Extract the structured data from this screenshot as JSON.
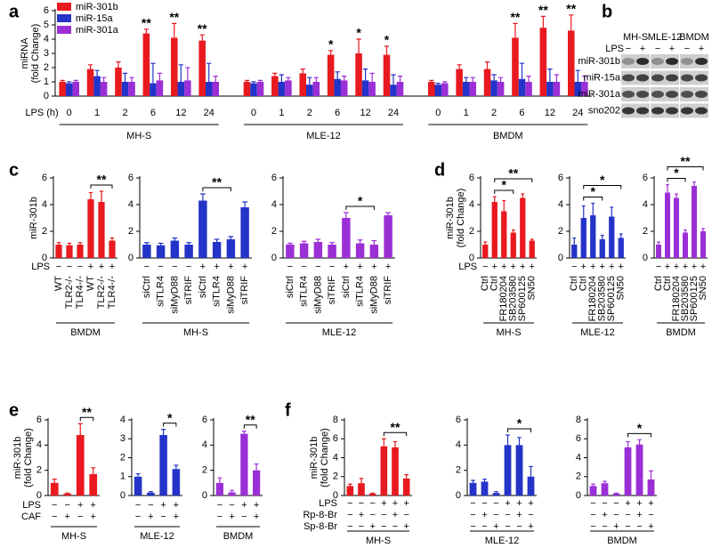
{
  "chart_data": [
    {
      "type": "grouped_bar",
      "panel_letter": "a",
      "ylabel": [
        "miRNA",
        "(fold Change)"
      ],
      "ylim": [
        0,
        6
      ],
      "yticks": [
        0,
        1,
        2,
        3,
        4,
        5,
        6
      ],
      "xlabel": "LPS (h)",
      "groups": [
        {
          "name": "MH-S",
          "categories": [
            "0",
            "1",
            "2",
            "6",
            "12",
            "24"
          ]
        },
        {
          "name": "MLE-12",
          "categories": [
            "0",
            "1",
            "2",
            "6",
            "12",
            "24"
          ]
        },
        {
          "name": "BMDM",
          "categories": [
            "0",
            "1",
            "2",
            "6",
            "12",
            "24"
          ]
        }
      ],
      "series": [
        {
          "name": "miR-301b",
          "color": "#e8191f",
          "values": [
            1.0,
            1.9,
            2.0,
            4.4,
            4.1,
            3.9,
            1.0,
            1.4,
            1.6,
            2.9,
            3.0,
            2.9,
            1.0,
            1.9,
            1.9,
            4.1,
            4.8,
            4.6
          ],
          "errors": [
            0.1,
            0.3,
            0.4,
            0.3,
            1.0,
            0.4,
            0.1,
            0.2,
            0.3,
            0.3,
            1.0,
            0.6,
            0.1,
            0.3,
            0.5,
            1.0,
            0.8,
            1.1
          ]
        },
        {
          "name": "miR-15a",
          "color": "#2433c8",
          "values": [
            0.9,
            1.4,
            1.0,
            0.9,
            1.0,
            1.0,
            0.9,
            1.0,
            0.8,
            1.2,
            1.1,
            0.8,
            0.8,
            1.0,
            1.1,
            1.2,
            1.0,
            1.0
          ],
          "errors": [
            0.1,
            0.4,
            0.6,
            1.4,
            1.2,
            1.3,
            0.1,
            0.5,
            0.5,
            0.5,
            0.8,
            0.7,
            0.1,
            0.3,
            0.4,
            1.1,
            0.9,
            0.8
          ]
        },
        {
          "name": "miR-301a",
          "color": "#9b2fd6",
          "values": [
            1.0,
            1.0,
            1.0,
            1.1,
            1.1,
            1.0,
            1.0,
            1.1,
            1.0,
            1.1,
            1.0,
            1.0,
            0.9,
            1.0,
            1.0,
            1.0,
            1.0,
            1.0
          ],
          "errors": [
            0.1,
            0.3,
            0.3,
            0.5,
            0.9,
            0.4,
            0.1,
            0.2,
            0.3,
            0.3,
            0.6,
            0.4,
            0.1,
            0.3,
            0.3,
            0.4,
            0.5,
            0.4
          ]
        }
      ],
      "annotations": [
        {
          "text": "**",
          "series": 0,
          "index": 3
        },
        {
          "text": "**",
          "series": 0,
          "index": 4
        },
        {
          "text": "**",
          "series": 0,
          "index": 5
        },
        {
          "text": "*",
          "series": 0,
          "index": 9
        },
        {
          "text": "*",
          "series": 0,
          "index": 10
        },
        {
          "text": "*",
          "series": 0,
          "index": 11
        },
        {
          "text": "**",
          "series": 0,
          "index": 15
        },
        {
          "text": "**",
          "series": 0,
          "index": 16
        },
        {
          "text": "**",
          "series": 0,
          "index": 17
        }
      ]
    },
    {
      "type": "bar",
      "panel_letter": "c",
      "ylabel": [
        "miR-301b"
      ],
      "ylim": [
        0,
        6
      ],
      "yticks": [
        0,
        2,
        4,
        6
      ],
      "xlabel": "BMDM",
      "color": "#e8191f",
      "categories": [
        "WT",
        "TLR2-/-",
        "TLR4-/-",
        "WT",
        "TLR2-/-",
        "TLR4-/-"
      ],
      "rows": [
        {
          "name": "LPS",
          "values": [
            "−",
            "−",
            "−",
            "+",
            "+",
            "+"
          ]
        }
      ],
      "values": [
        1.0,
        0.95,
        1.0,
        4.4,
        4.2,
        1.3
      ],
      "errors": [
        0.15,
        0.15,
        0.15,
        0.5,
        0.8,
        0.2
      ],
      "annotations": [
        {
          "text": "**",
          "bracket": [
            3,
            5
          ]
        }
      ]
    },
    {
      "type": "bar",
      "ylim": [
        0,
        6
      ],
      "yticks": [
        0,
        2,
        4,
        6
      ],
      "xlabel": "MH-S",
      "color": "#2433c8",
      "categories": [
        "siCtrl",
        "siTLR4",
        "siMyD88",
        "siTRIF",
        "siCtrl",
        "siTLR4",
        "siMyD88",
        "siTRIF"
      ],
      "rows": [
        {
          "values": [
            "−",
            "−",
            "−",
            "−",
            "+",
            "+",
            "+",
            "+"
          ]
        }
      ],
      "values": [
        1.0,
        0.95,
        1.3,
        1.0,
        4.3,
        1.2,
        1.4,
        3.8
      ],
      "errors": [
        0.15,
        0.15,
        0.2,
        0.15,
        0.5,
        0.2,
        0.2,
        0.4
      ],
      "annotations": [
        {
          "text": "**",
          "bracket": [
            4,
            6
          ]
        }
      ]
    },
    {
      "type": "bar",
      "ylim": [
        0,
        6
      ],
      "yticks": [
        0,
        2,
        4,
        6
      ],
      "xlabel": "MLE-12",
      "color": "#9b2fd6",
      "categories": [
        "siCtrl",
        "siTLR4",
        "siMyD88",
        "siTRIF",
        "siCtrl",
        "siTLR4",
        "siMyD88",
        "siTRIF"
      ],
      "rows": [
        {
          "values": [
            "−",
            "−",
            "−",
            "−",
            "+",
            "+",
            "+",
            "+"
          ]
        }
      ],
      "values": [
        1.0,
        1.1,
        1.2,
        1.0,
        3.0,
        1.1,
        1.0,
        3.2
      ],
      "errors": [
        0.1,
        0.15,
        0.2,
        0.15,
        0.4,
        0.25,
        0.3,
        0.2
      ],
      "annotations": [
        {
          "text": "*",
          "bracket": [
            4,
            6
          ]
        }
      ]
    },
    {
      "type": "bar",
      "panel_letter": "d",
      "ylabel": [
        "miR-301b",
        "(fold Change)"
      ],
      "ylim": [
        0,
        6
      ],
      "yticks": [
        0,
        2,
        4,
        6
      ],
      "xlabel": "MH-S",
      "color": "#e8191f",
      "categories": [
        "Ctrl",
        "Ctrl",
        "FR180204",
        "SB203580",
        "SP600125",
        "SN50"
      ],
      "rows": [
        {
          "name": "LPS",
          "values": [
            "−",
            "+",
            "+",
            "+",
            "+",
            "+"
          ]
        }
      ],
      "values": [
        1.0,
        4.2,
        3.5,
        1.9,
        4.5,
        1.3
      ],
      "errors": [
        0.2,
        0.4,
        0.8,
        0.2,
        0.3,
        0.1
      ],
      "annotations": [
        {
          "text": "*",
          "bracket": [
            1,
            3
          ]
        },
        {
          "text": "**",
          "bracket": [
            1,
            5
          ]
        }
      ]
    },
    {
      "type": "bar",
      "ylim": [
        0,
        6
      ],
      "yticks": [
        0,
        2,
        4,
        6
      ],
      "xlabel": "MLE-12",
      "color": "#2433c8",
      "categories": [
        "Ctrl",
        "Ctrl",
        "FR180204",
        "SB203580",
        "SP600125",
        "SN50"
      ],
      "rows": [
        {
          "values": [
            "−",
            "+",
            "+",
            "+",
            "+",
            "+"
          ]
        }
      ],
      "values": [
        1.0,
        3.0,
        3.2,
        1.4,
        3.1,
        1.5
      ],
      "errors": [
        0.5,
        0.9,
        0.9,
        0.3,
        0.7,
        0.3
      ],
      "annotations": [
        {
          "text": "*",
          "bracket": [
            1,
            3
          ]
        },
        {
          "text": "*",
          "bracket": [
            1,
            5
          ]
        }
      ]
    },
    {
      "type": "bar",
      "ylim": [
        0,
        6
      ],
      "yticks": [
        0,
        2,
        4,
        6
      ],
      "xlabel": "BMDM",
      "color": "#9b2fd6",
      "categories": [
        "Ctrl",
        "Ctrl",
        "FR180204",
        "SB203580",
        "SP600125",
        "SN50"
      ],
      "rows": [
        {
          "values": [
            "−",
            "+",
            "+",
            "+",
            "+",
            "+"
          ]
        }
      ],
      "values": [
        1.0,
        4.9,
        4.5,
        1.9,
        5.4,
        2.0
      ],
      "errors": [
        0.2,
        0.6,
        0.3,
        0.2,
        0.3,
        0.2
      ],
      "annotations": [
        {
          "text": "*",
          "bracket": [
            1,
            3
          ]
        },
        {
          "text": "**",
          "bracket": [
            1,
            5
          ]
        }
      ]
    },
    {
      "type": "bar",
      "panel_letter": "e",
      "ylabel": [
        "miR-301b",
        "(fold Change)"
      ],
      "ylim": [
        0,
        6
      ],
      "yticks": [
        0,
        2,
        4,
        6
      ],
      "xlabel": "MH-S",
      "color": "#e8191f",
      "rows": [
        {
          "name": "LPS",
          "values": [
            "−",
            "−",
            "+",
            "+"
          ]
        },
        {
          "name": "CAF",
          "values": [
            "−",
            "+",
            "−",
            "+"
          ]
        }
      ],
      "values": [
        1.0,
        0.15,
        4.8,
        1.7
      ],
      "errors": [
        0.3,
        0.05,
        0.9,
        0.5
      ],
      "annotations": [
        {
          "text": "**",
          "bracket": [
            2,
            3
          ]
        }
      ]
    },
    {
      "type": "bar",
      "ylim": [
        0,
        4
      ],
      "yticks": [
        0,
        1,
        2,
        3,
        4
      ],
      "xlabel": "MLE-12",
      "color": "#2433c8",
      "rows": [
        {
          "values": [
            "−",
            "−",
            "+",
            "+"
          ]
        },
        {
          "values": [
            "−",
            "+",
            "−",
            "+"
          ]
        }
      ],
      "values": [
        1.0,
        0.15,
        3.2,
        1.4
      ],
      "errors": [
        0.15,
        0.05,
        0.3,
        0.2
      ],
      "annotations": [
        {
          "text": "*",
          "bracket": [
            2,
            3
          ]
        }
      ]
    },
    {
      "type": "bar",
      "ylim": [
        0,
        6
      ],
      "yticks": [
        0,
        2,
        4,
        6
      ],
      "xlabel": "BMDM",
      "color": "#9b2fd6",
      "rows": [
        {
          "values": [
            "−",
            "−",
            "+",
            "+"
          ]
        },
        {
          "values": [
            "−",
            "+",
            "−",
            "+"
          ]
        }
      ],
      "values": [
        1.0,
        0.25,
        4.9,
        2.0
      ],
      "errors": [
        0.4,
        0.15,
        0.2,
        0.5
      ],
      "annotations": [
        {
          "text": "**",
          "bracket": [
            2,
            3
          ]
        }
      ]
    },
    {
      "type": "bar",
      "panel_letter": "f",
      "ylabel": [
        "miR-301b",
        "(fold Change)"
      ],
      "ylim": [
        0,
        8
      ],
      "yticks": [
        0,
        2,
        4,
        6,
        8
      ],
      "xlabel": "MH-S",
      "color": "#e8191f",
      "rows": [
        {
          "name": "LPS",
          "values": [
            "−",
            "−",
            "−",
            "+",
            "+",
            "+"
          ]
        },
        {
          "name": "Rp-8-Br",
          "values": [
            "−",
            "+",
            "−",
            "−",
            "+",
            "−"
          ]
        },
        {
          "name": "Sp-8-Br",
          "values": [
            "−",
            "−",
            "+",
            "−",
            "−",
            "+"
          ]
        }
      ],
      "values": [
        1.0,
        1.3,
        0.2,
        5.2,
        5.1,
        1.8
      ],
      "errors": [
        0.2,
        0.5,
        0.05,
        0.8,
        0.6,
        0.4
      ],
      "annotations": [
        {
          "text": "**",
          "bracket": [
            3,
            5
          ]
        }
      ]
    },
    {
      "type": "bar",
      "ylim": [
        0,
        6
      ],
      "yticks": [
        0,
        2,
        4,
        6
      ],
      "xlabel": "MLE-12",
      "color": "#2433c8",
      "rows": [
        {
          "values": [
            "−",
            "−",
            "−",
            "+",
            "+",
            "+"
          ]
        },
        {
          "values": [
            "−",
            "+",
            "−",
            "−",
            "+",
            "−"
          ]
        },
        {
          "values": [
            "−",
            "−",
            "+",
            "−",
            "−",
            "+"
          ]
        }
      ],
      "values": [
        1.0,
        1.1,
        0.2,
        4.0,
        4.0,
        1.5
      ],
      "errors": [
        0.2,
        0.2,
        0.1,
        0.8,
        0.6,
        0.8
      ],
      "annotations": [
        {
          "text": "*",
          "bracket": [
            3,
            5
          ]
        }
      ]
    },
    {
      "type": "bar",
      "ylim": [
        0,
        8
      ],
      "yticks": [
        0,
        2,
        4,
        6,
        8
      ],
      "xlabel": "BMDM",
      "color": "#9b2fd6",
      "rows": [
        {
          "values": [
            "−",
            "−",
            "−",
            "+",
            "+",
            "+"
          ]
        },
        {
          "values": [
            "−",
            "+",
            "−",
            "−",
            "+",
            "−"
          ]
        },
        {
          "values": [
            "−",
            "−",
            "+",
            "−",
            "−",
            "+"
          ]
        }
      ],
      "values": [
        1.0,
        1.3,
        0.2,
        5.1,
        5.4,
        1.7
      ],
      "errors": [
        0.2,
        0.2,
        0.05,
        0.6,
        0.5,
        0.9
      ],
      "annotations": [
        {
          "text": "*",
          "bracket": [
            3,
            5
          ]
        }
      ]
    }
  ],
  "blot": {
    "letter": "b",
    "treatment": "LPS",
    "columns": [
      {
        "name": "MH-S",
        "lanes": [
          "−",
          "+"
        ]
      },
      {
        "name": "MLE-12",
        "lanes": [
          "−",
          "+"
        ]
      },
      {
        "name": "BMDM",
        "lanes": [
          "−",
          "+"
        ]
      }
    ],
    "rows": [
      "miR-301b",
      "miR-15a",
      "miR-301a",
      "sno202"
    ]
  }
}
